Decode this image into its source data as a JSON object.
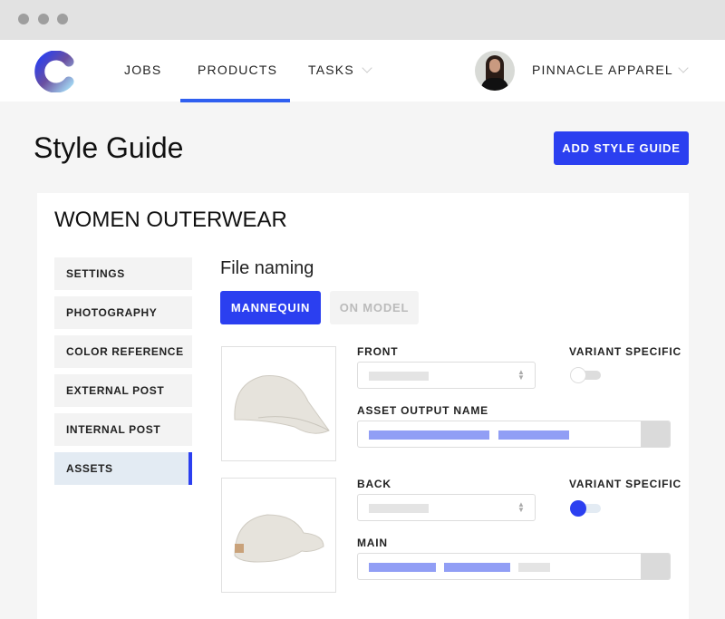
{
  "nav": {
    "items": [
      {
        "label": "JOBS"
      },
      {
        "label": "PRODUCTS",
        "active": true
      },
      {
        "label": "TASKS"
      }
    ],
    "account": "PINNACLE APPAREL"
  },
  "page": {
    "title": "Style Guide",
    "add_button": "ADD STYLE GUIDE"
  },
  "card": {
    "title": "WOMEN OUTERWEAR",
    "sidebar": [
      {
        "label": "SETTINGS"
      },
      {
        "label": "PHOTOGRAPHY"
      },
      {
        "label": "COLOR REFERENCE"
      },
      {
        "label": "EXTERNAL POST"
      },
      {
        "label": "INTERNAL POST"
      },
      {
        "label": "ASSETS",
        "active": true
      }
    ],
    "section_title": "File naming",
    "tabs": [
      {
        "label": "MANNEQUIN",
        "active": true
      },
      {
        "label": "ON MODEL"
      }
    ],
    "assets": [
      {
        "view_label": "FRONT",
        "variant_label": "VARIANT SPECIFIC",
        "variant_on": false,
        "name_label": "ASSET OUTPUT NAME"
      },
      {
        "view_label": "BACK",
        "variant_label": "VARIANT SPECIFIC",
        "variant_on": true,
        "name_label": "MAIN"
      }
    ]
  },
  "colors": {
    "accent": "#2b3ff0",
    "placeholder_bar": "#919ef5",
    "active_side": "#e3ebf3"
  }
}
